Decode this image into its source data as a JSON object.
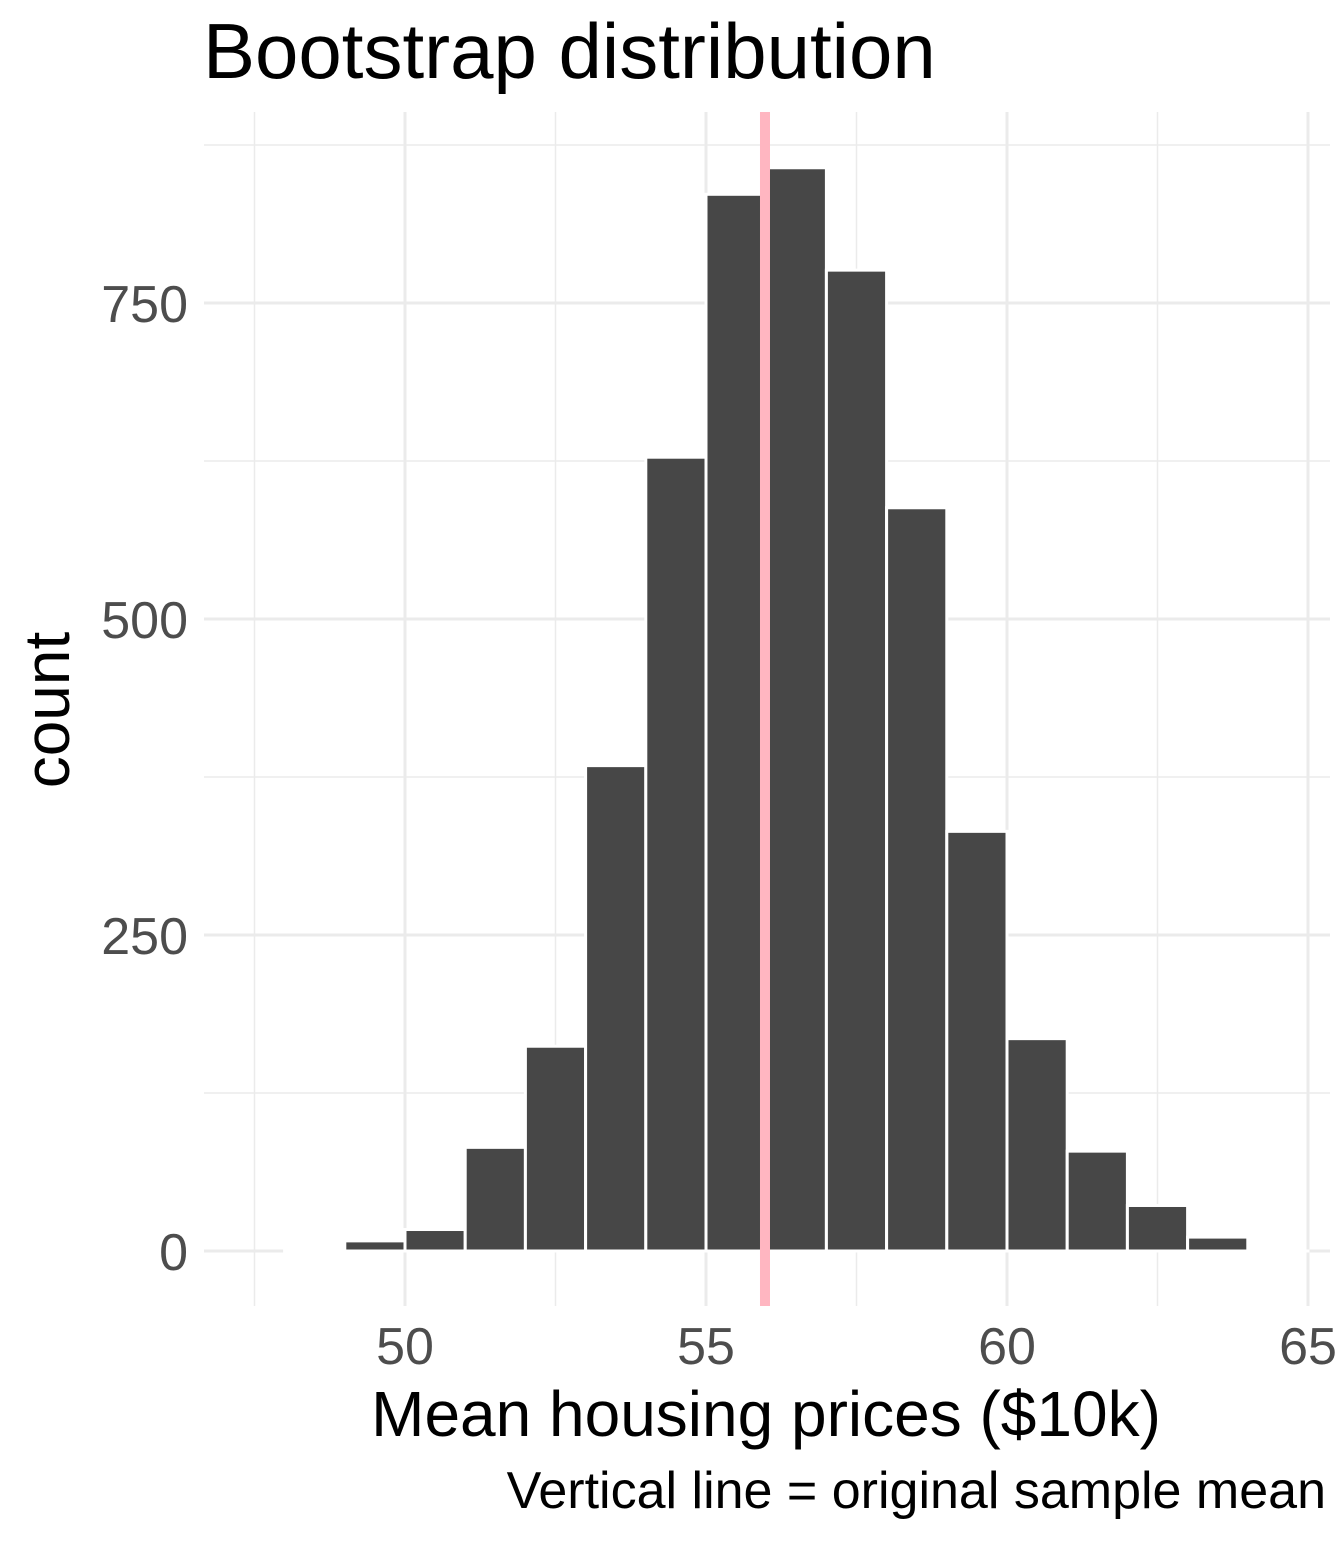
{
  "chart_data": {
    "type": "bar",
    "title": "Bootstrap distribution",
    "xlabel": "Mean housing prices ($10k)",
    "ylabel": "count",
    "caption": "Vertical line = original sample mean",
    "xlim": [
      47.5,
      65.0
    ],
    "ylim": [
      -45,
      900
    ],
    "x_ticks": [
      50,
      55,
      60,
      65
    ],
    "y_ticks": [
      0,
      250,
      500,
      750
    ],
    "x_minor": [
      47.5,
      52.5,
      57.5,
      62.5
    ],
    "y_minor": [
      125,
      375,
      625,
      875
    ],
    "grid": true,
    "bin_width": 1.0,
    "bins": [
      {
        "x0": 48.0,
        "x1": 49.0,
        "count": 0
      },
      {
        "x0": 49.0,
        "x1": 50.0,
        "count": 8
      },
      {
        "x0": 50.0,
        "x1": 51.0,
        "count": 17
      },
      {
        "x0": 51.0,
        "x1": 52.0,
        "count": 82
      },
      {
        "x0": 52.0,
        "x1": 53.0,
        "count": 162
      },
      {
        "x0": 53.0,
        "x1": 54.0,
        "count": 384
      },
      {
        "x0": 54.0,
        "x1": 55.0,
        "count": 628
      },
      {
        "x0": 55.0,
        "x1": 56.0,
        "count": 836
      },
      {
        "x0": 56.0,
        "x1": 57.0,
        "count": 857
      },
      {
        "x0": 57.0,
        "x1": 58.0,
        "count": 776
      },
      {
        "x0": 58.0,
        "x1": 59.0,
        "count": 588
      },
      {
        "x0": 59.0,
        "x1": 60.0,
        "count": 332
      },
      {
        "x0": 60.0,
        "x1": 61.0,
        "count": 168
      },
      {
        "x0": 61.0,
        "x1": 62.0,
        "count": 79
      },
      {
        "x0": 62.0,
        "x1": 63.0,
        "count": 36
      },
      {
        "x0": 63.0,
        "x1": 64.0,
        "count": 11
      },
      {
        "x0": 64.0,
        "x1": 65.0,
        "count": 0
      }
    ],
    "vline": {
      "x": 55.98,
      "color": "#FFB6C1"
    },
    "colors": {
      "bar_fill": "#474747",
      "bar_border": "#ffffff",
      "grid": "#ebebeb",
      "tick_label": "#4d4d4d",
      "title": "#000000"
    }
  }
}
